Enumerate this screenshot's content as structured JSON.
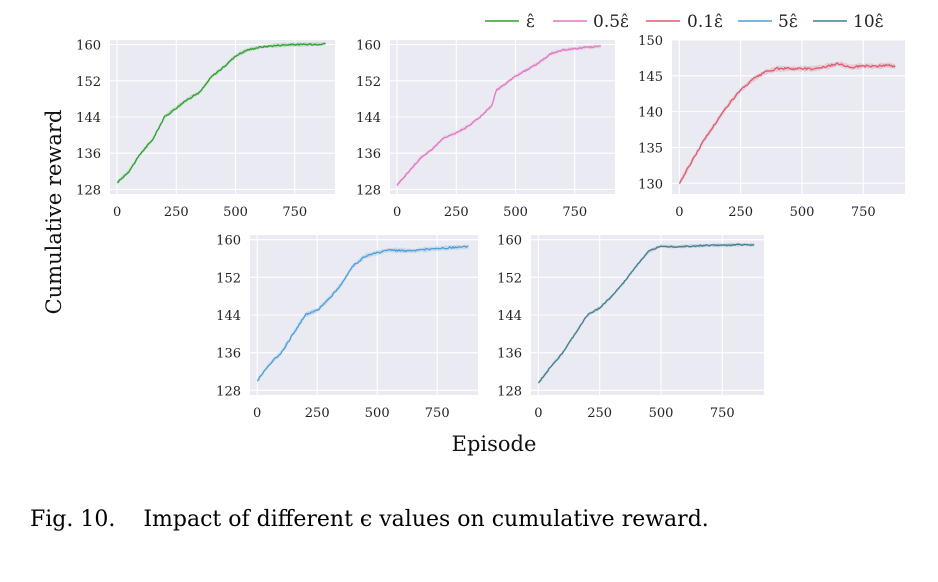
{
  "chart_data": [
    {
      "type": "line",
      "series_name": "ε̂",
      "color": "#2ca02c",
      "xlim": [
        -30,
        920
      ],
      "ylim": [
        127,
        161
      ],
      "xticks": [
        "0",
        "250",
        "500",
        "750"
      ],
      "yticks": [
        "128",
        "136",
        "144",
        "152",
        "160"
      ],
      "x": [
        0,
        50,
        100,
        150,
        200,
        250,
        300,
        350,
        400,
        450,
        500,
        550,
        600,
        650,
        700,
        750,
        800,
        850,
        880
      ],
      "values": [
        129.5,
        132,
        136,
        139,
        144,
        146,
        148,
        149.5,
        153,
        155,
        157.5,
        158.8,
        159.4,
        159.7,
        159.9,
        160,
        160,
        160.1,
        160.2
      ],
      "noise": 0.35
    },
    {
      "type": "line",
      "series_name": "0.5ε̂",
      "color": "#e377c2",
      "xlim": [
        -30,
        920
      ],
      "ylim": [
        127,
        161
      ],
      "xticks": [
        "0",
        "250",
        "500",
        "750"
      ],
      "yticks": [
        "128",
        "136",
        "144",
        "152",
        "160"
      ],
      "x": [
        0,
        50,
        100,
        150,
        200,
        250,
        300,
        350,
        400,
        420,
        450,
        500,
        550,
        600,
        650,
        700,
        750,
        800,
        860
      ],
      "values": [
        129,
        132,
        135,
        137,
        139.5,
        140.5,
        142,
        144,
        146.5,
        150,
        151,
        153,
        154.5,
        156,
        158,
        158.8,
        159.1,
        159.4,
        159.6
      ],
      "noise": 0.35
    },
    {
      "type": "line",
      "series_name": "0.1ε̂",
      "color": "#dc5b6e",
      "xlim": [
        -30,
        920
      ],
      "ylim": [
        128.5,
        150
      ],
      "xticks": [
        "0",
        "250",
        "500",
        "750"
      ],
      "yticks": [
        "130",
        "135",
        "140",
        "145",
        "150"
      ],
      "x": [
        0,
        50,
        100,
        150,
        200,
        250,
        300,
        350,
        400,
        450,
        500,
        550,
        600,
        650,
        700,
        750,
        800,
        850,
        880
      ],
      "values": [
        130,
        133,
        136,
        138.5,
        141,
        143,
        144.5,
        145.5,
        146,
        146,
        146,
        146,
        146.3,
        146.7,
        146.2,
        146.4,
        146.3,
        146.5,
        146.3
      ],
      "noise": 0.3
    },
    {
      "type": "line",
      "series_name": "5ε̂",
      "color": "#4c9fd8",
      "xlim": [
        -30,
        920
      ],
      "ylim": [
        127,
        161
      ],
      "xticks": [
        "0",
        "250",
        "500",
        "750"
      ],
      "yticks": [
        "128",
        "136",
        "144",
        "152",
        "160"
      ],
      "x": [
        0,
        50,
        100,
        150,
        200,
        250,
        300,
        350,
        400,
        450,
        500,
        550,
        600,
        650,
        700,
        750,
        800,
        850,
        880
      ],
      "values": [
        130,
        133.5,
        136,
        140,
        144,
        145,
        147.5,
        150.5,
        154.5,
        156.5,
        157.2,
        157.8,
        157.7,
        157.6,
        157.9,
        158.1,
        158.3,
        158.4,
        158.5
      ],
      "noise": 0.4
    },
    {
      "type": "line",
      "series_name": "10ε̂",
      "color": "#3f7f8f",
      "xlim": [
        -30,
        920
      ],
      "ylim": [
        127,
        161
      ],
      "xticks": [
        "0",
        "250",
        "500",
        "750"
      ],
      "yticks": [
        "128",
        "136",
        "144",
        "152",
        "160"
      ],
      "x": [
        0,
        50,
        100,
        150,
        200,
        250,
        300,
        350,
        400,
        450,
        500,
        550,
        600,
        650,
        700,
        750,
        800,
        850,
        880
      ],
      "values": [
        129.5,
        133,
        136,
        140,
        144,
        145.5,
        148,
        151,
        154.5,
        157.5,
        158.7,
        158.5,
        158.6,
        158.7,
        158.8,
        158.8,
        158.9,
        158.9,
        158.9
      ],
      "noise": 0.3
    }
  ],
  "figure": {
    "ylabel": "Cumulative reward",
    "xlabel": "Episode",
    "legend": [
      "ε̂",
      "0.5ε̂",
      "0.1ε̂",
      "5ε̂",
      "10ε̂"
    ],
    "caption": "Fig. 10.    Impact of different ϵ values on cumulative reward."
  }
}
